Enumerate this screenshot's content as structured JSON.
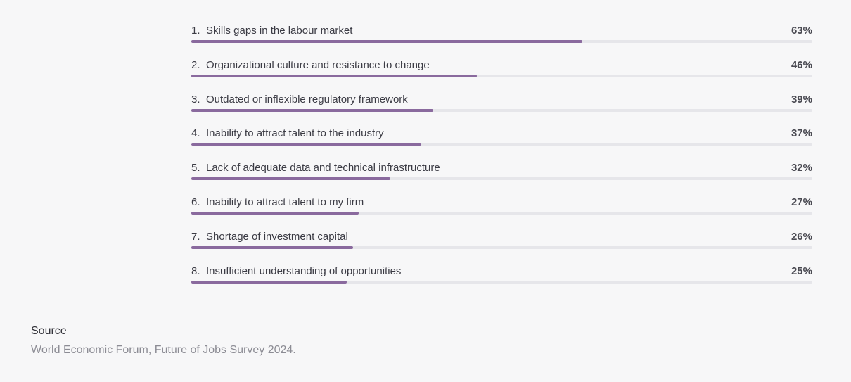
{
  "chart_data": {
    "type": "bar",
    "orientation": "horizontal",
    "categories": [
      "Skills gaps in the labour market",
      "Organizational culture and resistance to change",
      "Outdated or inflexible regulatory framework",
      "Inability to attract talent to the industry",
      "Lack of adequate data and technical infrastructure",
      "Inability to attract talent to my firm",
      "Shortage of investment capital",
      "Insufficient understanding of opportunities"
    ],
    "numbers": [
      "1.",
      "2.",
      "3.",
      "4.",
      "5.",
      "6.",
      "7.",
      "8."
    ],
    "values": [
      63,
      46,
      39,
      37,
      32,
      27,
      26,
      25
    ],
    "value_labels": [
      "63%",
      "46%",
      "39%",
      "37%",
      "32%",
      "27%",
      "26%",
      "25%"
    ],
    "xlim": [
      0,
      100
    ],
    "colors": {
      "bar": "#8a6a9e",
      "track": "#e6e6ea"
    }
  },
  "source": {
    "title": "Source",
    "text": "World Economic Forum, Future of Jobs Survey 2024."
  }
}
